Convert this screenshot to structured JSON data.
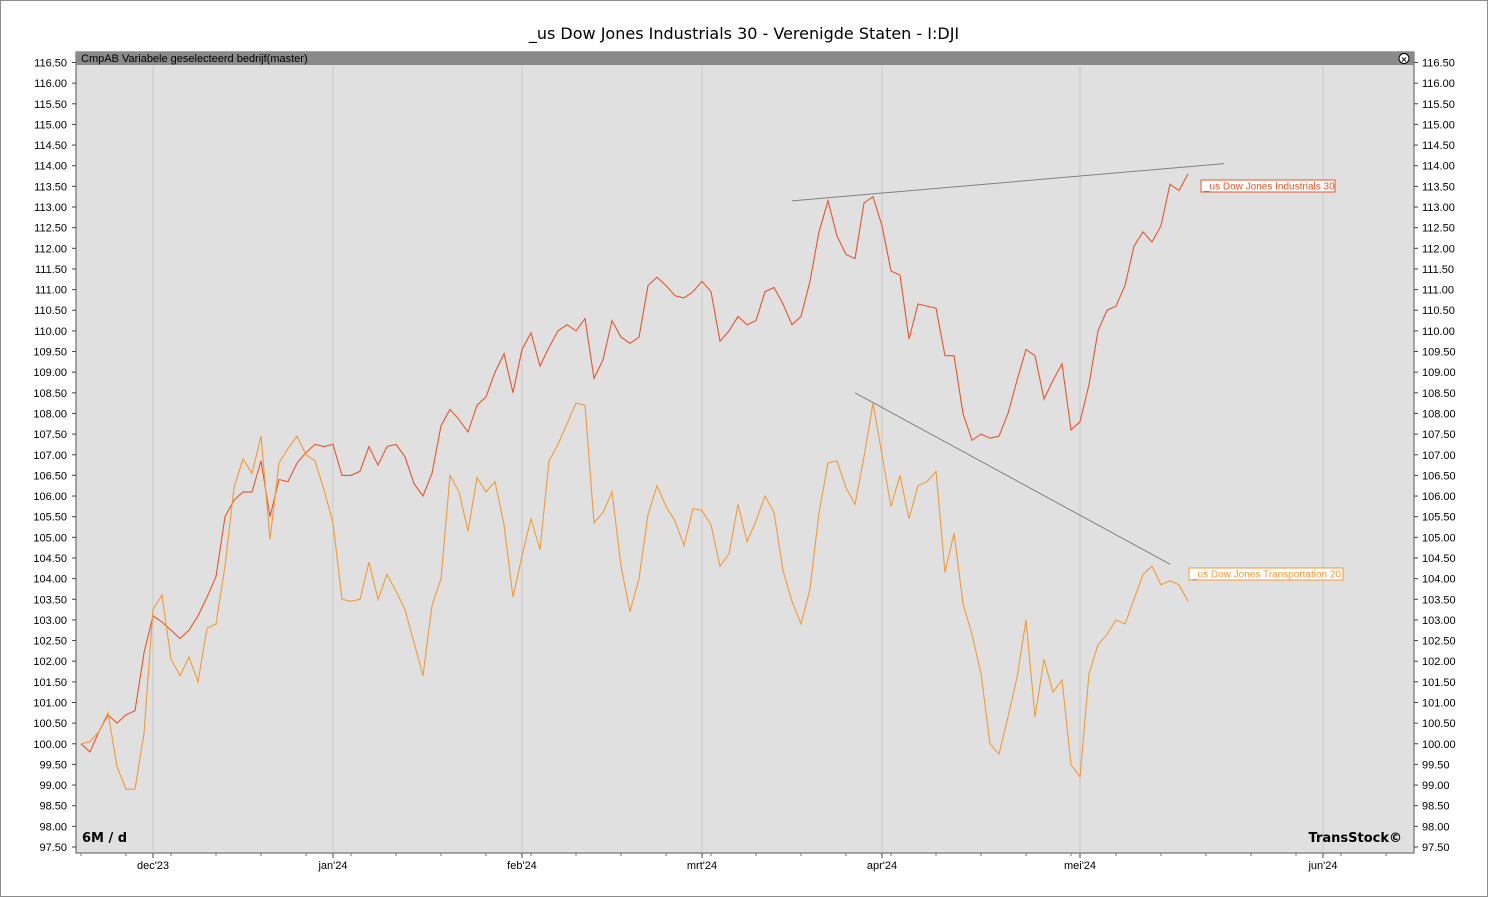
{
  "title": "_us Dow Jones Industrials 30 - Verenigde Staten - I:DJI",
  "panel_label": "CmpAB Variabele geselecteerd bedrijf(master)",
  "period_label": "6M / d",
  "brand": "TransStock©",
  "colors": {
    "plot_bg": "#e0e0e0",
    "header_bg": "#8a8a8a",
    "industrials": "#e8552a",
    "transport": "#f39a35",
    "trendline": "#808080",
    "grid": "#c8c8c8"
  },
  "chart_data": {
    "type": "line",
    "ylim": [
      97.5,
      116.5
    ],
    "y_ticks": [
      "97.50",
      "98.00",
      "98.50",
      "99.00",
      "99.50",
      "100.00",
      "100.50",
      "101.00",
      "101.50",
      "102.00",
      "102.50",
      "103.00",
      "103.50",
      "104.00",
      "104.50",
      "105.00",
      "105.50",
      "106.00",
      "106.50",
      "107.00",
      "107.50",
      "108.00",
      "108.50",
      "109.00",
      "109.50",
      "110.00",
      "110.50",
      "111.00",
      "111.50",
      "112.00",
      "112.50",
      "113.00",
      "113.50",
      "114.00",
      "114.50",
      "115.00",
      "115.50",
      "116.00",
      "116.50"
    ],
    "x_labels": [
      {
        "label": "dec'23",
        "index": 8
      },
      {
        "label": "jan'24",
        "index": 28
      },
      {
        "label": "feb'24",
        "index": 49
      },
      {
        "label": "mrt'24",
        "index": 69
      },
      {
        "label": "apr'24",
        "index": 89
      },
      {
        "label": "mei'24",
        "index": 111
      },
      {
        "label": "jun'24",
        "index": 138
      }
    ],
    "x_count": 150,
    "x_start_index": -1,
    "series": [
      {
        "name": "_us Dow Jones Industrials 30",
        "values": [
          100.0,
          99.8,
          100.3,
          100.7,
          100.5,
          100.7,
          100.8,
          102.2,
          103.1,
          102.95,
          102.75,
          102.55,
          102.75,
          103.1,
          103.55,
          104.05,
          105.5,
          105.9,
          106.1,
          106.1,
          106.85,
          105.5,
          106.4,
          106.35,
          106.8,
          107.05,
          107.25,
          107.2,
          107.25,
          106.5,
          106.5,
          106.6,
          107.2,
          106.75,
          107.2,
          107.25,
          106.95,
          106.3,
          106.0,
          106.55,
          107.7,
          108.1,
          107.85,
          107.55,
          108.2,
          108.4,
          109.0,
          109.45,
          108.5,
          109.55,
          109.95,
          109.15,
          109.6,
          110.0,
          110.15,
          110.0,
          110.3,
          108.85,
          109.3,
          110.25,
          109.85,
          109.7,
          109.85,
          111.1,
          111.3,
          111.1,
          110.85,
          110.8,
          110.95,
          111.2,
          110.95,
          109.75,
          110.0,
          110.35,
          110.15,
          110.25,
          110.95,
          111.05,
          110.65,
          110.15,
          110.35,
          111.2,
          112.4,
          113.15,
          112.3,
          111.85,
          111.75,
          113.1,
          113.25,
          112.55,
          111.45,
          111.35,
          109.8,
          110.65,
          110.6,
          110.55,
          109.4,
          109.4,
          108.0,
          107.35,
          107.5,
          107.4,
          107.45,
          108.0,
          108.8,
          109.55,
          109.4,
          108.35,
          108.8,
          109.2,
          107.6,
          107.8,
          108.7,
          110.0,
          110.5,
          110.6,
          111.1,
          112.05,
          112.4,
          112.15,
          112.55,
          113.55,
          113.4,
          113.8
        ]
      },
      {
        "name": "_us Dow Jones Transportation 20",
        "values": [
          100.0,
          100.05,
          100.3,
          100.75,
          99.45,
          98.9,
          98.9,
          100.25,
          103.25,
          103.6,
          102.05,
          101.65,
          102.1,
          101.5,
          102.8,
          102.9,
          104.3,
          106.2,
          106.9,
          106.55,
          107.45,
          104.95,
          106.8,
          107.15,
          107.45,
          107.0,
          106.85,
          106.15,
          105.35,
          103.5,
          103.45,
          103.5,
          104.4,
          103.5,
          104.1,
          103.7,
          103.25,
          102.45,
          101.65,
          103.35,
          104.0,
          106.5,
          106.1,
          105.15,
          106.45,
          106.1,
          106.35,
          105.3,
          103.55,
          104.55,
          105.45,
          104.7,
          106.85,
          107.25,
          107.75,
          108.25,
          108.2,
          105.35,
          105.6,
          106.1,
          104.3,
          103.2,
          104.0,
          105.55,
          106.25,
          105.75,
          105.4,
          104.8,
          105.7,
          105.65,
          105.3,
          104.3,
          104.6,
          105.8,
          104.9,
          105.4,
          106.0,
          105.6,
          104.2,
          103.45,
          102.9,
          103.75,
          105.6,
          106.8,
          106.85,
          106.2,
          105.8,
          106.95,
          108.25,
          107.0,
          105.75,
          106.5,
          105.45,
          106.25,
          106.35,
          106.6,
          104.15,
          105.1,
          103.4,
          102.65,
          101.7,
          100.0,
          99.75,
          100.65,
          101.6,
          103.0,
          100.65,
          102.05,
          101.25,
          101.55,
          99.5,
          99.2,
          101.7,
          102.4,
          102.65,
          103.0,
          102.9,
          103.5,
          104.1,
          104.3,
          103.85,
          103.95,
          103.85,
          103.45
        ]
      }
    ],
    "trendlines": [
      {
        "start": [
          79,
          113.15
        ],
        "end": [
          127,
          114.05
        ]
      },
      {
        "start": [
          86,
          108.5
        ],
        "end": [
          121,
          104.35
        ]
      }
    ],
    "legend": [
      {
        "label": "_us Dow Jones Industrials 30",
        "series": 0,
        "placement": "right of last point"
      },
      {
        "label": "_us Dow Jones Transportation 20",
        "series": 1,
        "placement": "right of last point"
      }
    ],
    "grid": true
  }
}
